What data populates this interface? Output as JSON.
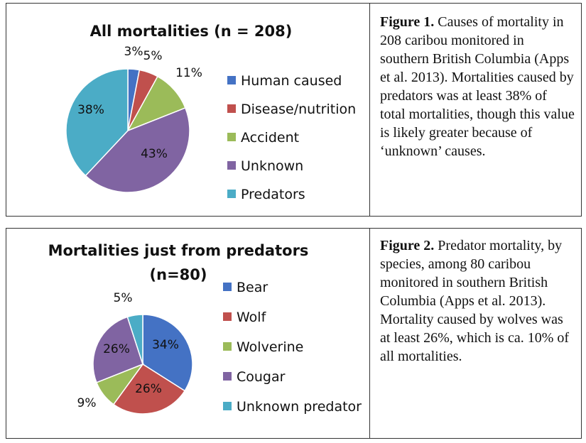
{
  "colors": {
    "blue": "#4472C4",
    "red": "#C0504D",
    "green": "#9BBB59",
    "purple": "#8064A2",
    "cyan": "#4BACC6"
  },
  "chart_data": [
    {
      "type": "pie",
      "title": "All mortalities (n = 208)",
      "categories": [
        "Human caused",
        "Disease/nutrition",
        "Accident",
        "Unknown",
        "Predators"
      ],
      "values": [
        3,
        5,
        11,
        43,
        38
      ],
      "data_labels": [
        "3%",
        "5%",
        "11%",
        "43%",
        "38%"
      ],
      "colors": [
        "#4472C4",
        "#C0504D",
        "#9BBB59",
        "#8064A2",
        "#4BACC6"
      ],
      "legend": "right"
    },
    {
      "type": "pie",
      "title": "Mortalities just from predators (n=80)",
      "categories": [
        "Bear",
        "Wolf",
        "Wolverine",
        "Cougar",
        "Unknown predator"
      ],
      "values": [
        34,
        26,
        9,
        26,
        5
      ],
      "data_labels": [
        "34%",
        "26%",
        "9%",
        "26%",
        "5%"
      ],
      "colors": [
        "#4472C4",
        "#C0504D",
        "#9BBB59",
        "#8064A2",
        "#4BACC6"
      ],
      "legend": "right"
    }
  ],
  "captions": [
    {
      "label": "Figure 1.",
      "text": " Causes of mortality in 208 caribou monitored in southern British Columbia  (Apps et al. 2013). Mortalities caused by predators was at least 38% of total mortalities, though this value is likely greater because of ‘unknown’ causes."
    },
    {
      "label": "Figure 2.",
      "text": " Predator mortality, by species, among 80 caribou monitored in southern British Columbia (Apps et al. 2013). Mortality caused by wolves was at least 26%, which is ca. 10% of all mortalities."
    }
  ],
  "titles": {
    "chart1": "All mortalities (n = 208)",
    "chart2_line1": "Mortalities just from predators",
    "chart2_line2": "(n=80)"
  }
}
